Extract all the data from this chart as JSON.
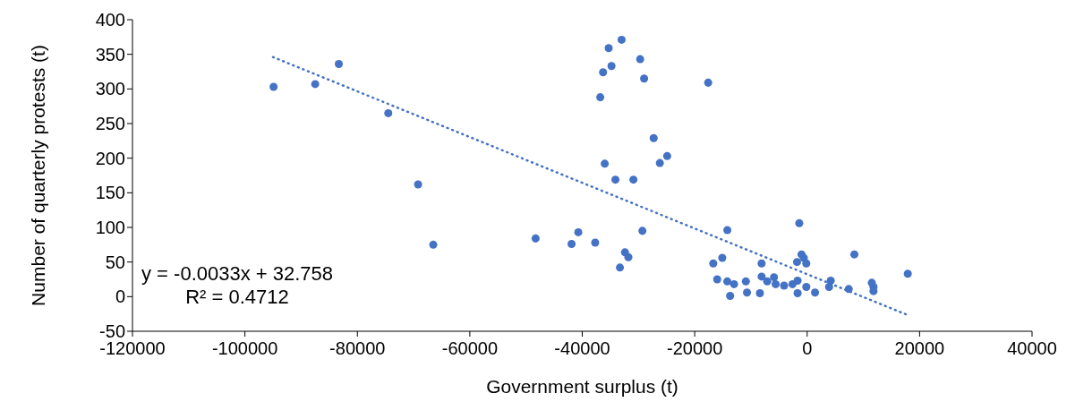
{
  "chart_data": {
    "type": "scatter",
    "xlabel": "Government surplus (t)",
    "ylabel": "Number of quarterly protests (t)",
    "xlim": [
      -120000,
      40000
    ],
    "xticks": [
      -120000,
      -100000,
      -80000,
      -60000,
      -40000,
      -20000,
      0,
      20000,
      40000
    ],
    "ylim": [
      -50,
      400
    ],
    "yticks": [
      -50,
      0,
      50,
      100,
      150,
      200,
      250,
      300,
      350,
      400
    ],
    "grid": false,
    "annotations": [
      "y = -0.0033x + 32.758",
      "R² = 0.4712"
    ],
    "series": [
      {
        "color": "#4472c4",
        "marker": "circle",
        "x": [
          -94900,
          -87500,
          -83300,
          -74500,
          -69200,
          -66500,
          -48300,
          -41900,
          -40700,
          -37700,
          -33000,
          -35300,
          -34800,
          -36300,
          -29700,
          -29000,
          -36800,
          -17600,
          -27300,
          -24900,
          -26200,
          -36000,
          -34100,
          -30900,
          -29300,
          -32400,
          -31800,
          -33300,
          -14200,
          -1400,
          -16700,
          -15100,
          -1000,
          -600,
          -1800,
          -150,
          8400,
          17900,
          -8100,
          -16000,
          -14200,
          -13000,
          -13700,
          -10900,
          -10700,
          -8400,
          -8100,
          -7100,
          -5900,
          -5600,
          -4100,
          -2600,
          -1700,
          -1700,
          -150,
          1400,
          4200,
          3900,
          7400,
          11500,
          11800,
          11800
        ],
        "values": [
          303,
          307,
          336,
          265,
          162,
          75,
          84,
          76,
          93,
          78,
          371,
          359,
          333,
          324,
          343,
          315,
          288,
          309,
          229,
          203,
          193,
          192,
          169,
          169,
          95,
          64,
          57,
          42,
          96,
          106,
          48,
          56,
          61,
          56,
          50,
          48,
          61,
          33,
          48,
          25,
          22,
          18,
          1,
          22,
          6,
          5,
          29,
          22,
          28,
          18,
          16,
          18,
          23,
          5,
          14,
          6,
          23,
          14,
          11,
          20,
          14,
          8
        ]
      },
      {
        "type": "line",
        "color": "#4472c4",
        "line_style": "dotted",
        "x": [
          -95000,
          18000
        ],
        "values": [
          346,
          -27
        ]
      }
    ]
  }
}
